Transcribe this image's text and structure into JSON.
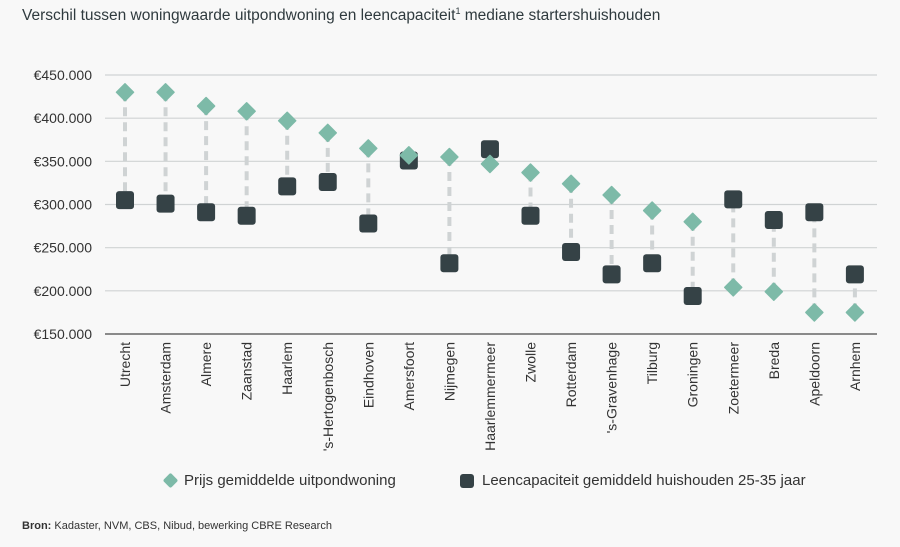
{
  "title": "Verschil tussen woningwaarde uitpondwoning en leencapaciteit",
  "title_sup": "1",
  "title_suffix": " mediane startershuishouden",
  "source_label": "Bron:",
  "source_text": " Kadaster, NVM, CBS, Nibud, bewerking CBRE Research",
  "colors": {
    "prijs": "#7dbaa8",
    "leen": "#354246",
    "connector": "#cfd3d4",
    "grid": "#d0d3d4"
  },
  "chart_data": {
    "type": "scatter",
    "categories": [
      "Utrecht",
      "Amsterdam",
      "Almere",
      "Zaanstad",
      "Haarlem",
      "'s-Hertogenbosch",
      "Eindhoven",
      "Amersfoort",
      "Nijmegen",
      "Haarlemmermeer",
      "Zwolle",
      "Rotterdam",
      "'s-Gravenhage",
      "Tilburg",
      "Groningen",
      "Zoetermeer",
      "Breda",
      "Apeldoorn",
      "Arnhem"
    ],
    "series": [
      {
        "name": "Prijs gemiddelde uitpondwoning",
        "marker": "diamond",
        "values": [
          430000,
          430000,
          414000,
          408000,
          397000,
          383000,
          365000,
          357000,
          355000,
          347000,
          337000,
          324000,
          311000,
          293000,
          280000,
          204000,
          199000,
          175000,
          175000
        ]
      },
      {
        "name": "Leencapaciteit gemiddeld huishouden 25-35 jaar",
        "marker": "square",
        "values": [
          305000,
          301000,
          291000,
          287000,
          321000,
          326000,
          278000,
          351000,
          232000,
          364000,
          287000,
          245000,
          219000,
          232000,
          194000,
          306000,
          282000,
          291000,
          219000
        ]
      }
    ],
    "ylim": [
      150000,
      450000
    ],
    "yticks": [
      150000,
      200000,
      250000,
      300000,
      350000,
      400000,
      450000
    ],
    "ytick_labels": [
      "€150.000",
      "€200.000",
      "€250.000",
      "€300.000",
      "€350.000",
      "€400.000",
      "€450.000"
    ],
    "grid": true,
    "legend_position": "bottom"
  }
}
